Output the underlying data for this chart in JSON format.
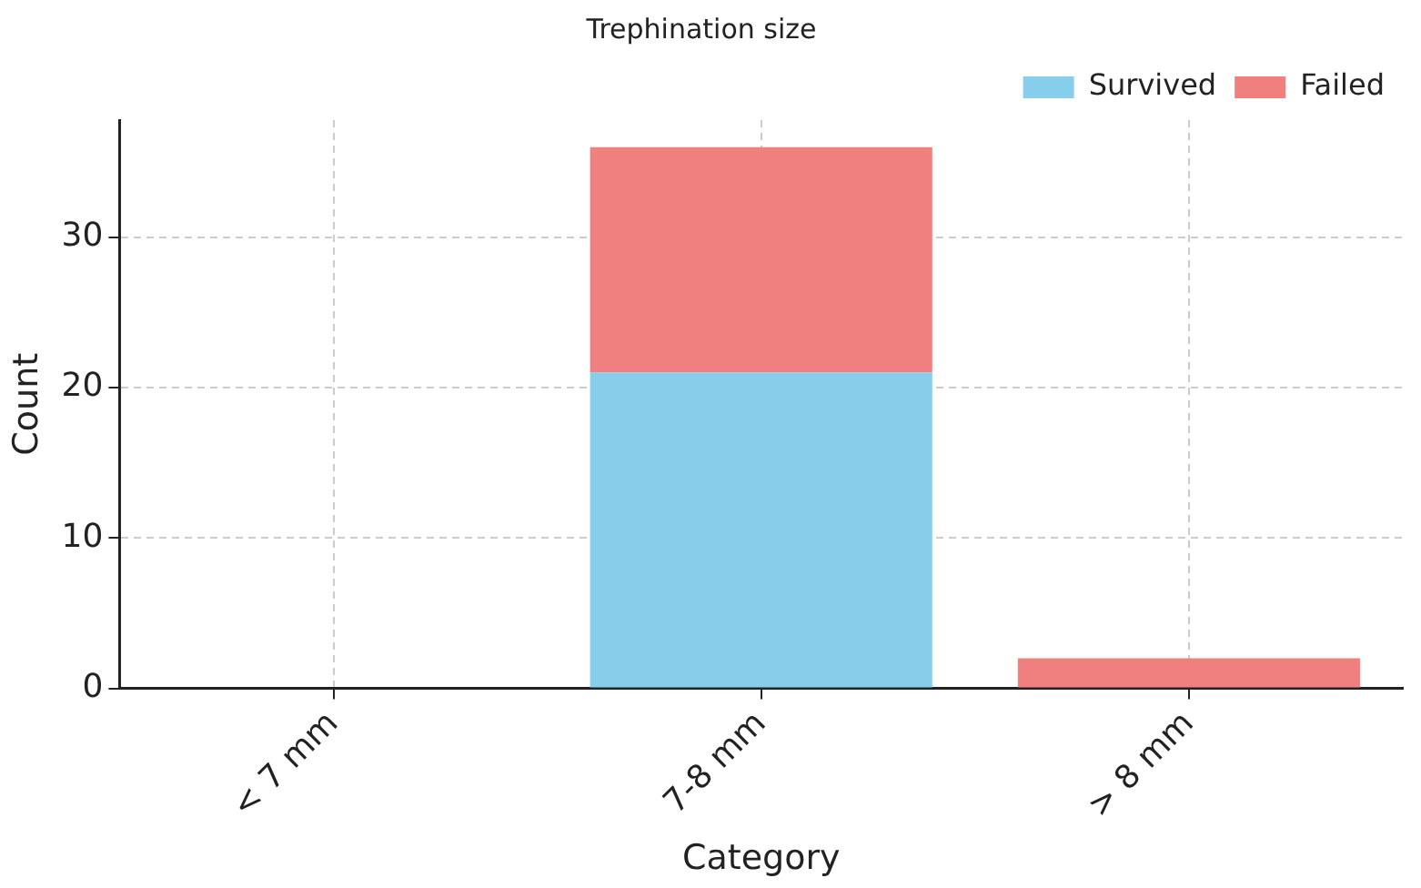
{
  "chart_data": {
    "type": "bar",
    "title": "Trephination size",
    "xlabel": "Category",
    "ylabel": "Count",
    "categories": [
      "< 7 mm",
      "7-8 mm",
      "> 8 mm"
    ],
    "series": [
      {
        "name": "Survived",
        "color": "#87ceeb",
        "values": [
          0,
          21,
          0
        ]
      },
      {
        "name": "Failed",
        "color": "#f08080",
        "values": [
          0,
          15,
          2
        ]
      }
    ],
    "stacked": true,
    "ylim": [
      0,
      37.8
    ],
    "yticks": [
      0,
      10,
      20,
      30
    ],
    "grid": true,
    "legend": "top right"
  }
}
